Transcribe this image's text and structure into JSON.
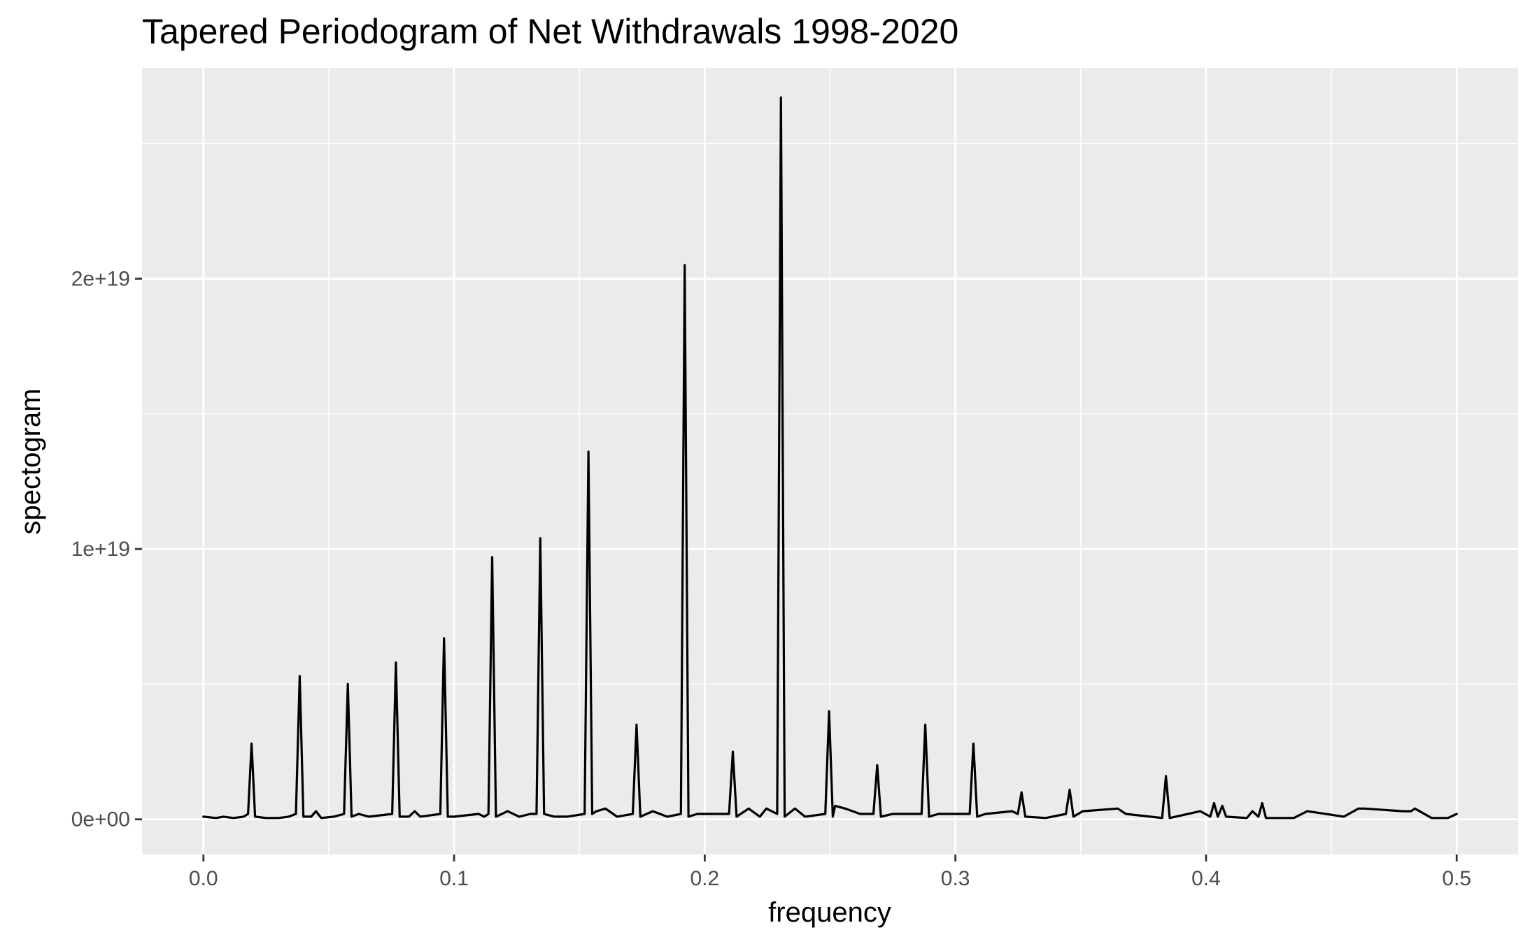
{
  "chart_data": {
    "type": "line",
    "title": "Tapered Periodogram of Net Withdrawals 1998-2020",
    "xlabel": "frequency",
    "ylabel": "spectogram",
    "xlim": [
      -0.0245,
      0.5245
    ],
    "ylim": [
      -1.3e+18,
      2.78e+19
    ],
    "x_ticks": [
      0.0,
      0.1,
      0.2,
      0.3,
      0.4,
      0.5
    ],
    "x_tick_labels": [
      "0.0",
      "0.1",
      "0.2",
      "0.3",
      "0.4",
      "0.5"
    ],
    "y_ticks": [
      0,
      1e+19,
      2e+19
    ],
    "y_tick_labels": [
      "0e+00",
      "1e+19",
      "2e+19"
    ],
    "grid": true,
    "line_color": "#000000",
    "series": [
      {
        "x": [
          0.0,
          0.005,
          0.008,
          0.012,
          0.016,
          0.0178,
          0.0192,
          0.0206,
          0.025,
          0.03,
          0.034,
          0.0369,
          0.0384,
          0.0399,
          0.043,
          0.0449,
          0.047,
          0.052,
          0.0561,
          0.0576,
          0.0591,
          0.062,
          0.066,
          0.0753,
          0.0768,
          0.0783,
          0.082,
          0.0843,
          0.0865,
          0.0945,
          0.096,
          0.0975,
          0.1,
          0.1098,
          0.112,
          0.1137,
          0.1152,
          0.1167,
          0.1191,
          0.1213,
          0.126,
          0.1304,
          0.1329,
          0.1344,
          0.1359,
          0.14,
          0.145,
          0.1521,
          0.1536,
          0.1551,
          0.1568,
          0.1604,
          0.165,
          0.1713,
          0.1728,
          0.1743,
          0.1793,
          0.185,
          0.1905,
          0.192,
          0.1935,
          0.197,
          0.2097,
          0.2112,
          0.2127,
          0.2175,
          0.222,
          0.2246,
          0.2289,
          0.2304,
          0.2319,
          0.236,
          0.24,
          0.2481,
          0.2496,
          0.2511,
          0.252,
          0.256,
          0.262,
          0.2673,
          0.2688,
          0.2703,
          0.275,
          0.2865,
          0.288,
          0.2895,
          0.2932,
          0.3057,
          0.3072,
          0.3087,
          0.312,
          0.3226,
          0.3249,
          0.3264,
          0.3279,
          0.336,
          0.3441,
          0.3456,
          0.3471,
          0.3508,
          0.3648,
          0.368,
          0.3825,
          0.384,
          0.3855,
          0.3977,
          0.4017,
          0.4032,
          0.4047,
          0.4065,
          0.408,
          0.4163,
          0.4185,
          0.4209,
          0.4224,
          0.4239,
          0.435,
          0.4404,
          0.455,
          0.4608,
          0.4632,
          0.4786,
          0.4818,
          0.4833,
          0.49,
          0.4965,
          0.5
        ],
        "y": [
          1e+17,
          5e+16,
          1e+17,
          5e+16,
          1e+17,
          2e+17,
          2.8e+18,
          1e+17,
          5e+16,
          5e+16,
          1e+17,
          2e+17,
          5.3e+18,
          1e+17,
          1e+17,
          3e+17,
          5e+16,
          1e+17,
          2e+17,
          5e+18,
          1e+17,
          2e+17,
          1e+17,
          2e+17,
          5.8e+18,
          1e+17,
          1e+17,
          3e+17,
          1e+17,
          2e+17,
          6.7e+18,
          1e+17,
          1e+17,
          2e+17,
          1e+17,
          2e+17,
          9.7e+18,
          1e+17,
          2e+17,
          3e+17,
          1e+17,
          2e+17,
          2e+17,
          1.04e+19,
          2e+17,
          1e+17,
          1e+17,
          2e+17,
          1.36e+19,
          2e+17,
          3e+17,
          4e+17,
          1e+17,
          2e+17,
          3.5e+18,
          1e+17,
          3e+17,
          1e+17,
          2e+17,
          2.05e+19,
          1e+17,
          2e+17,
          2e+17,
          2.5e+18,
          1e+17,
          4e+17,
          1e+17,
          4e+17,
          2e+17,
          2.67e+19,
          1e+17,
          4e+17,
          1e+17,
          2e+17,
          4e+18,
          1e+17,
          5e+17,
          4e+17,
          2e+17,
          2e+17,
          2e+18,
          1e+17,
          2e+17,
          2e+17,
          3.5e+18,
          1e+17,
          2e+17,
          2e+17,
          2.8e+18,
          1e+17,
          2e+17,
          3e+17,
          2e+17,
          1e+18,
          1e+17,
          5e+16,
          2e+17,
          1.1e+18,
          1e+17,
          3e+17,
          4e+17,
          2e+17,
          5e+16,
          1.6e+18,
          5e+16,
          3e+17,
          1e+17,
          6e+17,
          1e+17,
          5e+17,
          1e+17,
          5e+16,
          3e+17,
          1e+17,
          6e+17,
          5e+16,
          5e+16,
          3e+17,
          1e+17,
          4e+17,
          4e+17,
          3e+17,
          3e+17,
          4e+17,
          5e+16,
          5e+16,
          2e+17
        ]
      }
    ]
  }
}
